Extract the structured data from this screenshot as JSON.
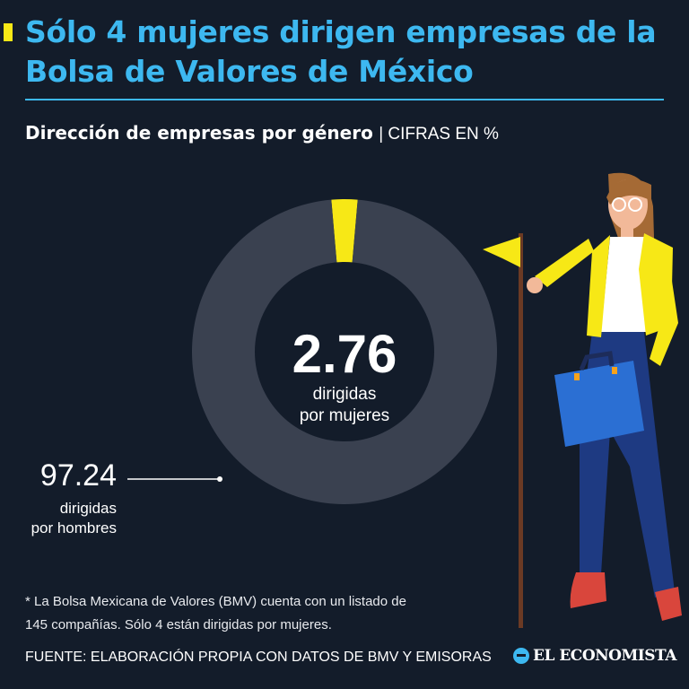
{
  "title": "Sólo 4 mujeres dirigen empresas de la Bolsa de Valores de México",
  "subtitle": "Dirección de empresas por género",
  "subtitle_unit": "CIFRAS EN %",
  "chart_data": {
    "type": "pie",
    "title": "Dirección de empresas por género",
    "unit": "CIFRAS EN %",
    "slices": [
      {
        "label": "dirigidas por mujeres",
        "value": 2.76,
        "color": "#f7e816"
      },
      {
        "label": "dirigidas por hombres",
        "value": 97.24,
        "color": "#3a4150"
      }
    ]
  },
  "labels": {
    "women_value": "2.76",
    "women_line1": "dirigidas",
    "women_line2": "por mujeres",
    "men_value": "97.24",
    "men_line1": "dirigidas",
    "men_line2": "por hombres"
  },
  "note_line1": "* La Bolsa Mexicana de Valores (BMV) cuenta con un listado de",
  "note_line2": "145 compañías. Sólo 4 están dirigidas por mujeres.",
  "source": "FUENTE: ELABORACIÓN PROPIA CON DATOS DE BMV Y EMISORAS",
  "brand": "EL ECONOMISTA",
  "colors": {
    "background": "#131c2a",
    "accent": "#3db8f0",
    "highlight": "#f7e816",
    "ring": "#3a4150"
  },
  "illustration": "businesswoman-with-flag-and-briefcase"
}
